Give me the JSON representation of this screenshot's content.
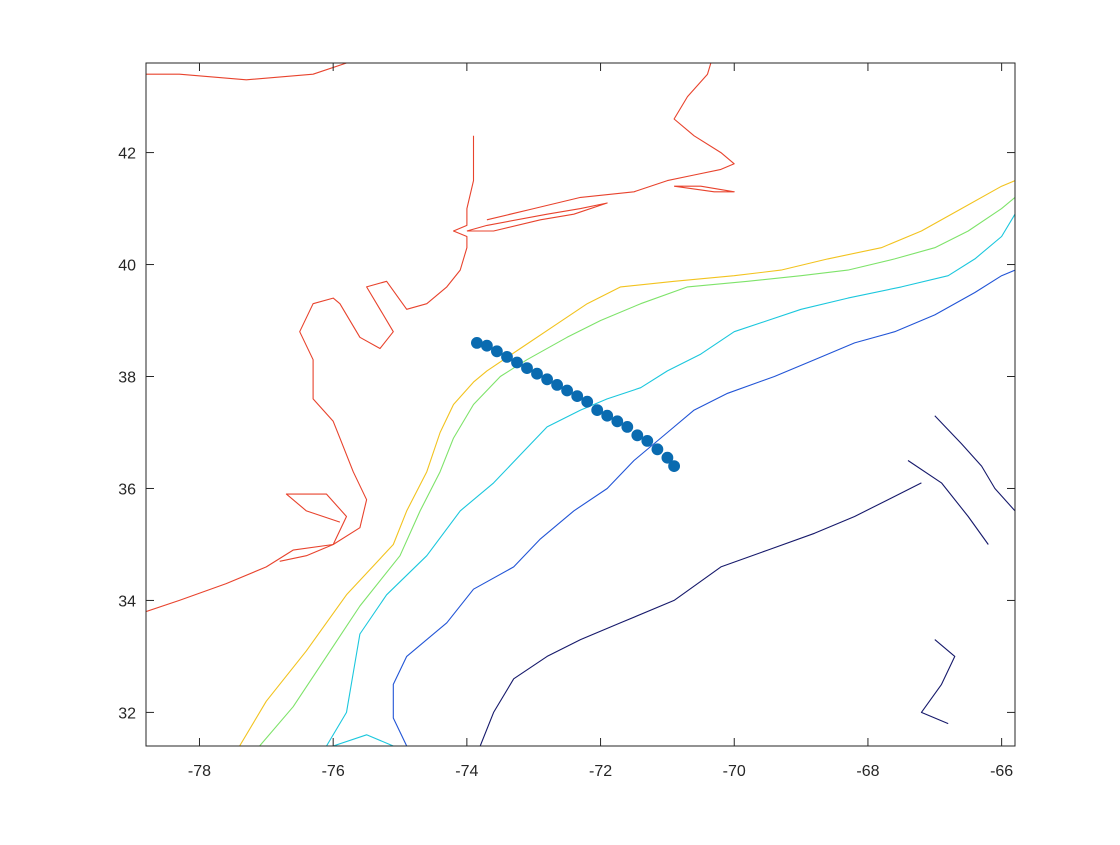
{
  "chart_data": {
    "type": "line",
    "title": "",
    "xlabel": "",
    "ylabel": "",
    "xlim": [
      -78.8,
      -65.8
    ],
    "ylim": [
      31.4,
      43.6
    ],
    "xticks": [
      -78,
      -76,
      -74,
      -72,
      -70,
      -68,
      -66
    ],
    "yticks": [
      32,
      34,
      36,
      38,
      40,
      42
    ],
    "xtick_labels": [
      "-78",
      "-76",
      "-74",
      "-72",
      "-70",
      "-68",
      "-66"
    ],
    "ytick_labels": [
      "32",
      "34",
      "36",
      "38",
      "40",
      "42"
    ],
    "grid": false,
    "legend": false,
    "series": [
      {
        "kind": "contour",
        "color": "#e8432d",
        "lines": [
          [
            [
              -78.8,
              43.4
            ],
            [
              -78.3,
              43.4
            ],
            [
              -77.3,
              43.3
            ],
            [
              -76.3,
              43.4
            ],
            [
              -75.8,
              43.6
            ]
          ],
          [
            [
              -78.8,
              33.8
            ],
            [
              -78.3,
              34.0
            ],
            [
              -77.6,
              34.3
            ],
            [
              -77.0,
              34.6
            ],
            [
              -76.6,
              34.9
            ],
            [
              -76.0,
              35.0
            ],
            [
              -75.6,
              35.3
            ],
            [
              -75.5,
              35.8
            ],
            [
              -75.7,
              36.3
            ],
            [
              -75.9,
              36.9
            ],
            [
              -76.0,
              37.2
            ],
            [
              -76.3,
              37.6
            ],
            [
              -76.3,
              38.3
            ],
            [
              -76.5,
              38.8
            ],
            [
              -76.3,
              39.3
            ],
            [
              -76.0,
              39.4
            ],
            [
              -75.9,
              39.3
            ],
            [
              -75.6,
              38.7
            ],
            [
              -75.3,
              38.5
            ],
            [
              -75.1,
              38.8
            ],
            [
              -75.3,
              39.2
            ],
            [
              -75.5,
              39.6
            ],
            [
              -75.2,
              39.7
            ],
            [
              -74.9,
              39.2
            ],
            [
              -74.6,
              39.3
            ],
            [
              -74.3,
              39.6
            ],
            [
              -74.1,
              39.9
            ],
            [
              -74.0,
              40.3
            ],
            [
              -74.0,
              40.5
            ],
            [
              -74.2,
              40.6
            ],
            [
              -74.0,
              40.7
            ],
            [
              -74.0,
              41.0
            ],
            [
              -73.9,
              41.5
            ],
            [
              -73.9,
              42.3
            ]
          ],
          [
            [
              -74.0,
              40.6
            ],
            [
              -73.7,
              40.7
            ],
            [
              -72.8,
              40.9
            ],
            [
              -72.3,
              41.0
            ],
            [
              -71.9,
              41.1
            ],
            [
              -72.4,
              40.9
            ],
            [
              -72.9,
              40.8
            ],
            [
              -73.6,
              40.6
            ],
            [
              -74.0,
              40.6
            ]
          ],
          [
            [
              -73.7,
              40.8
            ],
            [
              -73.0,
              41.0
            ],
            [
              -72.3,
              41.2
            ],
            [
              -71.5,
              41.3
            ],
            [
              -71.0,
              41.5
            ],
            [
              -70.6,
              41.6
            ],
            [
              -70.2,
              41.7
            ],
            [
              -70.0,
              41.8
            ],
            [
              -70.2,
              42.0
            ],
            [
              -70.6,
              42.3
            ],
            [
              -70.9,
              42.6
            ],
            [
              -70.7,
              43.0
            ],
            [
              -70.4,
              43.4
            ],
            [
              -70.3,
              43.8
            ]
          ],
          [
            [
              -70.9,
              41.4
            ],
            [
              -70.3,
              41.3
            ],
            [
              -70.0,
              41.3
            ],
            [
              -70.5,
              41.4
            ],
            [
              -70.9,
              41.4
            ]
          ],
          [
            [
              -76.8,
              34.7
            ],
            [
              -76.4,
              34.8
            ],
            [
              -76.0,
              35.0
            ],
            [
              -75.8,
              35.5
            ],
            [
              -76.1,
              35.9
            ],
            [
              -76.7,
              35.9
            ],
            [
              -76.4,
              35.6
            ],
            [
              -75.9,
              35.4
            ]
          ]
        ]
      },
      {
        "kind": "contour",
        "color": "#f2c31f",
        "lines": [
          [
            [
              -77.4,
              31.4
            ],
            [
              -77.0,
              32.2
            ],
            [
              -76.4,
              33.1
            ],
            [
              -75.8,
              34.1
            ],
            [
              -75.1,
              35.0
            ],
            [
              -74.9,
              35.6
            ],
            [
              -74.6,
              36.3
            ],
            [
              -74.4,
              37.0
            ],
            [
              -74.2,
              37.5
            ],
            [
              -73.9,
              37.9
            ],
            [
              -73.7,
              38.1
            ],
            [
              -73.2,
              38.5
            ],
            [
              -72.7,
              38.9
            ],
            [
              -72.2,
              39.3
            ],
            [
              -71.7,
              39.6
            ],
            [
              -70.9,
              39.7
            ],
            [
              -70.0,
              39.8
            ],
            [
              -69.3,
              39.9
            ],
            [
              -68.6,
              40.1
            ],
            [
              -67.8,
              40.3
            ],
            [
              -67.2,
              40.6
            ],
            [
              -66.6,
              41.0
            ],
            [
              -66.0,
              41.4
            ],
            [
              -65.8,
              41.5
            ]
          ]
        ]
      },
      {
        "kind": "contour",
        "color": "#7ee36a",
        "lines": [
          [
            [
              -77.1,
              31.4
            ],
            [
              -76.6,
              32.1
            ],
            [
              -76.1,
              33.0
            ],
            [
              -75.6,
              33.9
            ],
            [
              -75.0,
              34.8
            ],
            [
              -74.7,
              35.6
            ],
            [
              -74.4,
              36.3
            ],
            [
              -74.2,
              36.9
            ],
            [
              -73.9,
              37.5
            ],
            [
              -73.5,
              38.0
            ],
            [
              -73.1,
              38.3
            ],
            [
              -72.5,
              38.7
            ],
            [
              -72.0,
              39.0
            ],
            [
              -71.4,
              39.3
            ],
            [
              -70.7,
              39.6
            ],
            [
              -69.8,
              39.7
            ],
            [
              -69.0,
              39.8
            ],
            [
              -68.3,
              39.9
            ],
            [
              -67.6,
              40.1
            ],
            [
              -67.0,
              40.3
            ],
            [
              -66.5,
              40.6
            ],
            [
              -66.0,
              41.0
            ],
            [
              -65.8,
              41.2
            ]
          ]
        ]
      },
      {
        "kind": "contour",
        "color": "#1bc7dd",
        "lines": [
          [
            [
              -76.1,
              31.4
            ],
            [
              -75.8,
              32.0
            ],
            [
              -75.7,
              32.7
            ],
            [
              -75.6,
              33.4
            ],
            [
              -75.2,
              34.1
            ],
            [
              -74.6,
              34.8
            ],
            [
              -74.1,
              35.6
            ],
            [
              -73.6,
              36.1
            ],
            [
              -73.2,
              36.6
            ],
            [
              -72.8,
              37.1
            ],
            [
              -72.3,
              37.4
            ],
            [
              -71.9,
              37.6
            ],
            [
              -71.4,
              37.8
            ],
            [
              -71.0,
              38.1
            ],
            [
              -70.5,
              38.4
            ],
            [
              -70.0,
              38.8
            ],
            [
              -69.5,
              39.0
            ],
            [
              -69.0,
              39.2
            ],
            [
              -68.3,
              39.4
            ],
            [
              -67.5,
              39.6
            ],
            [
              -66.8,
              39.8
            ],
            [
              -66.4,
              40.1
            ],
            [
              -66.0,
              40.5
            ],
            [
              -65.8,
              40.9
            ]
          ],
          [
            [
              -76.0,
              31.4
            ],
            [
              -75.5,
              31.6
            ],
            [
              -75.1,
              31.4
            ]
          ]
        ]
      },
      {
        "kind": "contour",
        "color": "#2255d6",
        "lines": [
          [
            [
              -74.9,
              31.4
            ],
            [
              -75.1,
              31.9
            ],
            [
              -75.1,
              32.5
            ],
            [
              -74.9,
              33.0
            ],
            [
              -74.3,
              33.6
            ],
            [
              -73.9,
              34.2
            ],
            [
              -73.3,
              34.6
            ],
            [
              -72.9,
              35.1
            ],
            [
              -72.4,
              35.6
            ],
            [
              -71.9,
              36.0
            ],
            [
              -71.5,
              36.5
            ],
            [
              -71.0,
              37.0
            ],
            [
              -70.6,
              37.4
            ],
            [
              -70.1,
              37.7
            ],
            [
              -69.4,
              38.0
            ],
            [
              -68.8,
              38.3
            ],
            [
              -68.2,
              38.6
            ],
            [
              -67.6,
              38.8
            ],
            [
              -67.0,
              39.1
            ],
            [
              -66.4,
              39.5
            ],
            [
              -66.0,
              39.8
            ],
            [
              -65.8,
              39.9
            ]
          ]
        ]
      },
      {
        "kind": "contour",
        "color": "#16196b",
        "lines": [
          [
            [
              -73.8,
              31.4
            ],
            [
              -73.6,
              32.0
            ],
            [
              -73.3,
              32.6
            ],
            [
              -72.8,
              33.0
            ],
            [
              -72.3,
              33.3
            ],
            [
              -71.7,
              33.6
            ],
            [
              -70.9,
              34.0
            ],
            [
              -70.2,
              34.6
            ],
            [
              -69.5,
              34.9
            ],
            [
              -68.8,
              35.2
            ],
            [
              -68.2,
              35.5
            ],
            [
              -67.7,
              35.8
            ],
            [
              -67.2,
              36.1
            ]
          ],
          [
            [
              -67.0,
              37.3
            ],
            [
              -66.6,
              36.8
            ],
            [
              -66.3,
              36.4
            ],
            [
              -66.1,
              36.0
            ],
            [
              -65.8,
              35.6
            ]
          ],
          [
            [
              -67.4,
              36.5
            ],
            [
              -66.9,
              36.1
            ],
            [
              -66.5,
              35.5
            ],
            [
              -66.2,
              35.0
            ]
          ],
          [
            [
              -67.0,
              33.3
            ],
            [
              -66.7,
              33.0
            ],
            [
              -66.9,
              32.5
            ],
            [
              -67.2,
              32.0
            ],
            [
              -66.8,
              31.8
            ]
          ]
        ]
      }
    ],
    "scatter": {
      "color": "#0a6bb0",
      "points": [
        [
          -73.85,
          38.6
        ],
        [
          -73.7,
          38.55
        ],
        [
          -73.55,
          38.45
        ],
        [
          -73.4,
          38.35
        ],
        [
          -73.25,
          38.25
        ],
        [
          -73.1,
          38.15
        ],
        [
          -72.95,
          38.05
        ],
        [
          -72.8,
          37.95
        ],
        [
          -72.65,
          37.85
        ],
        [
          -72.5,
          37.75
        ],
        [
          -72.35,
          37.65
        ],
        [
          -72.2,
          37.55
        ],
        [
          -72.05,
          37.4
        ],
        [
          -71.9,
          37.3
        ],
        [
          -71.75,
          37.2
        ],
        [
          -71.6,
          37.1
        ],
        [
          -71.45,
          36.95
        ],
        [
          -71.3,
          36.85
        ],
        [
          -71.15,
          36.7
        ],
        [
          -71.0,
          36.55
        ],
        [
          -70.9,
          36.4
        ]
      ]
    }
  }
}
